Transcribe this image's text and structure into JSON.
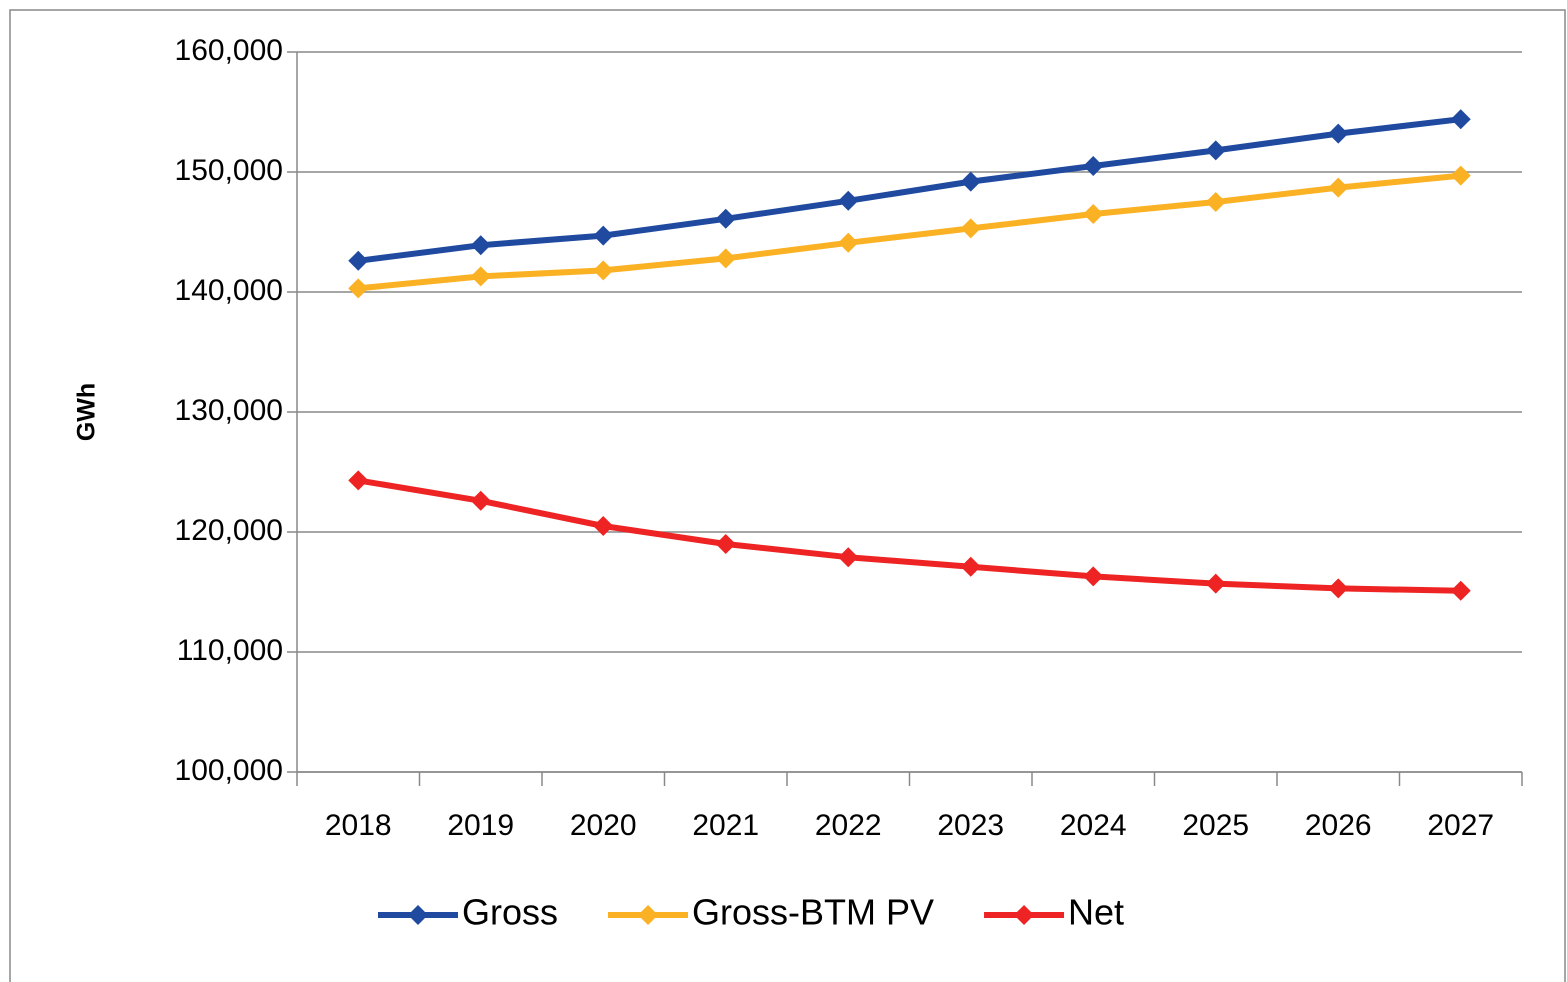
{
  "chart_data": {
    "type": "line",
    "y_label": "GWh",
    "categories": [
      "2018",
      "2019",
      "2020",
      "2021",
      "2022",
      "2023",
      "2024",
      "2025",
      "2026",
      "2027"
    ],
    "series": [
      {
        "name": "Gross",
        "color": "#1f4aa0",
        "values": [
          142600,
          143900,
          144700,
          146100,
          147600,
          149200,
          150500,
          151800,
          153200,
          154400
        ]
      },
      {
        "name": "Gross-BTM PV",
        "color": "#fbb124",
        "values": [
          140300,
          141300,
          141800,
          142800,
          144100,
          145300,
          146500,
          147500,
          148700,
          149700
        ]
      },
      {
        "name": "Net",
        "color": "#ee2424",
        "values": [
          124300,
          122600,
          120500,
          119000,
          117900,
          117100,
          116300,
          115700,
          115300,
          115100
        ]
      }
    ],
    "ylim": [
      100000,
      160000
    ],
    "yticks": [
      {
        "value": 100000,
        "label": "100,000"
      },
      {
        "value": 110000,
        "label": "110,000"
      },
      {
        "value": 120000,
        "label": "120,000"
      },
      {
        "value": 130000,
        "label": "130,000"
      },
      {
        "value": 140000,
        "label": "140,000"
      },
      {
        "value": 150000,
        "label": "150,000"
      },
      {
        "value": 160000,
        "label": "160,000"
      }
    ],
    "grid": true,
    "legend": "bottom"
  }
}
